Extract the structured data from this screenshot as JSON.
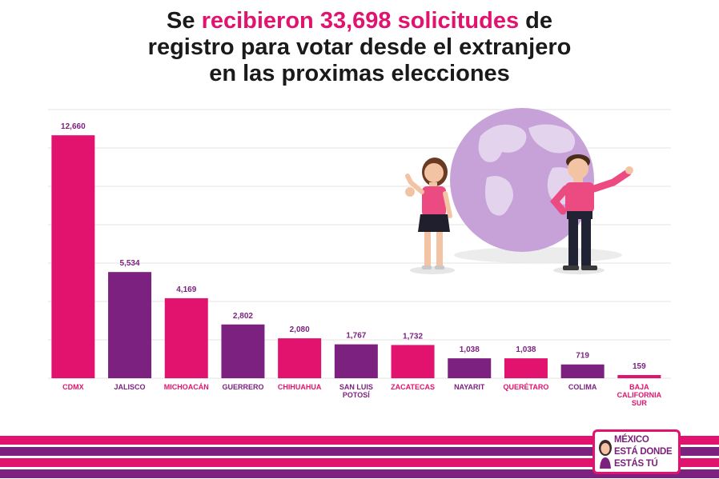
{
  "header": {
    "title_pre": "Se",
    "title_highlight": "recibieron 33,698 solicitudes",
    "title_post": "de",
    "title_line2": "registro para votar desde el extranjero",
    "title_line3": "en las proximas elecciones"
  },
  "colors": {
    "magenta": "#e2126f",
    "purple": "#7d2180",
    "title_text": "#1a1a1a",
    "globe": "#c6a2d8"
  },
  "chart_data": {
    "type": "bar",
    "categories": [
      "CDMX",
      "JALISCO",
      "MICHOACÁN",
      "GUERRERO",
      "CHIHUAHUA",
      "SAN LUIS POTOSÍ",
      "ZACATECAS",
      "NAYARIT",
      "QUERÉTARO",
      "COLIMA",
      "BAJA CALIFORNIA SUR"
    ],
    "values": [
      12660,
      5534,
      4169,
      2802,
      2080,
      1767,
      1732,
      1038,
      1038,
      719,
      159
    ],
    "data_labels": [
      "12,660",
      "5,534",
      "4,169",
      "2,802",
      "2,080",
      "1,767",
      "1,732",
      "1,038",
      "1,038",
      "719",
      "159"
    ],
    "bar_colors": [
      "#e2126f",
      "#7d2180",
      "#e2126f",
      "#7d2180",
      "#e2126f",
      "#7d2180",
      "#e2126f",
      "#7d2180",
      "#e2126f",
      "#7d2180",
      "#e2126f"
    ],
    "ylim": [
      0,
      14000
    ],
    "grid": true,
    "title": "",
    "xlabel": "",
    "ylabel": ""
  },
  "branding": {
    "logo_lines": [
      "MÉXICO",
      "ESTÁ DONDE",
      "ESTÁS TÚ"
    ]
  },
  "icons": {
    "illustration": "globe-with-two-people-illustration",
    "logo_face": "woman-face-icon"
  }
}
